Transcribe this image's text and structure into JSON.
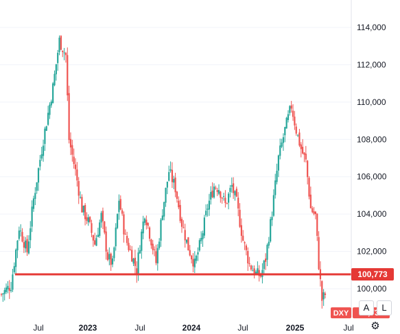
{
  "chart_data": {
    "type": "candlestick",
    "symbol": "DXY",
    "last_price_label": "99,739",
    "level_line_label": "100,773",
    "level_line_value": 100773,
    "last_price_value": 99739,
    "ylim": [
      99000,
      115000
    ],
    "y_ticks": [
      {
        "value": 114000,
        "label": "114,000"
      },
      {
        "value": 112000,
        "label": "112,000"
      },
      {
        "value": 110000,
        "label": "110,000"
      },
      {
        "value": 108000,
        "label": "108,000"
      },
      {
        "value": 106000,
        "label": "106,000"
      },
      {
        "value": 104000,
        "label": "104,000"
      },
      {
        "value": 102000,
        "label": "102,000"
      },
      {
        "value": 100000,
        "label": "100,000"
      }
    ],
    "x_ticks": [
      {
        "label": "Jul",
        "bold": false
      },
      {
        "label": "2023",
        "bold": true
      },
      {
        "label": "Jul",
        "bold": false
      },
      {
        "label": "2024",
        "bold": true
      },
      {
        "label": "Jul",
        "bold": false
      },
      {
        "label": "2025",
        "bold": true
      },
      {
        "label": "Jul",
        "bold": false
      }
    ],
    "anchors": [
      [
        0,
        99700
      ],
      [
        6,
        100200
      ],
      [
        11,
        103300
      ],
      [
        16,
        102000
      ],
      [
        20,
        104800
      ],
      [
        26,
        108000
      ],
      [
        32,
        110800
      ],
      [
        36,
        113300
      ],
      [
        40,
        112500
      ],
      [
        42,
        108000
      ],
      [
        46,
        106300
      ],
      [
        50,
        104300
      ],
      [
        54,
        103600
      ],
      [
        58,
        102400
      ],
      [
        62,
        103900
      ],
      [
        66,
        101700
      ],
      [
        69,
        101300
      ],
      [
        73,
        104800
      ],
      [
        77,
        102700
      ],
      [
        81,
        101800
      ],
      [
        84,
        101000
      ],
      [
        86,
        102400
      ],
      [
        89,
        104100
      ],
      [
        93,
        102600
      ],
      [
        96,
        101400
      ],
      [
        100,
        104200
      ],
      [
        104,
        106300
      ],
      [
        108,
        105400
      ],
      [
        112,
        103500
      ],
      [
        116,
        102200
      ],
      [
        120,
        101300
      ],
      [
        124,
        102600
      ],
      [
        128,
        104400
      ],
      [
        132,
        105500
      ],
      [
        135,
        105400
      ],
      [
        139,
        104500
      ],
      [
        143,
        105500
      ],
      [
        146,
        104600
      ],
      [
        150,
        102600
      ],
      [
        154,
        101300
      ],
      [
        158,
        100800
      ],
      [
        161,
        100700
      ],
      [
        164,
        101600
      ],
      [
        168,
        104100
      ],
      [
        172,
        107000
      ],
      [
        176,
        108500
      ],
      [
        180,
        109800
      ],
      [
        183,
        108500
      ],
      [
        186,
        107500
      ],
      [
        189,
        106800
      ],
      [
        192,
        104300
      ],
      [
        195,
        103900
      ],
      [
        197,
        101300
      ],
      [
        199,
        99400
      ],
      [
        201,
        99700
      ]
    ],
    "colors": {
      "up": "#26a69a",
      "down": "#ef5350",
      "level_line": "#e53935",
      "price_tag": "#ef5350",
      "level_tag": "#e53935"
    }
  },
  "controls": {
    "auto_label": "A",
    "log_label": "L",
    "settings_icon": "gear-icon"
  }
}
